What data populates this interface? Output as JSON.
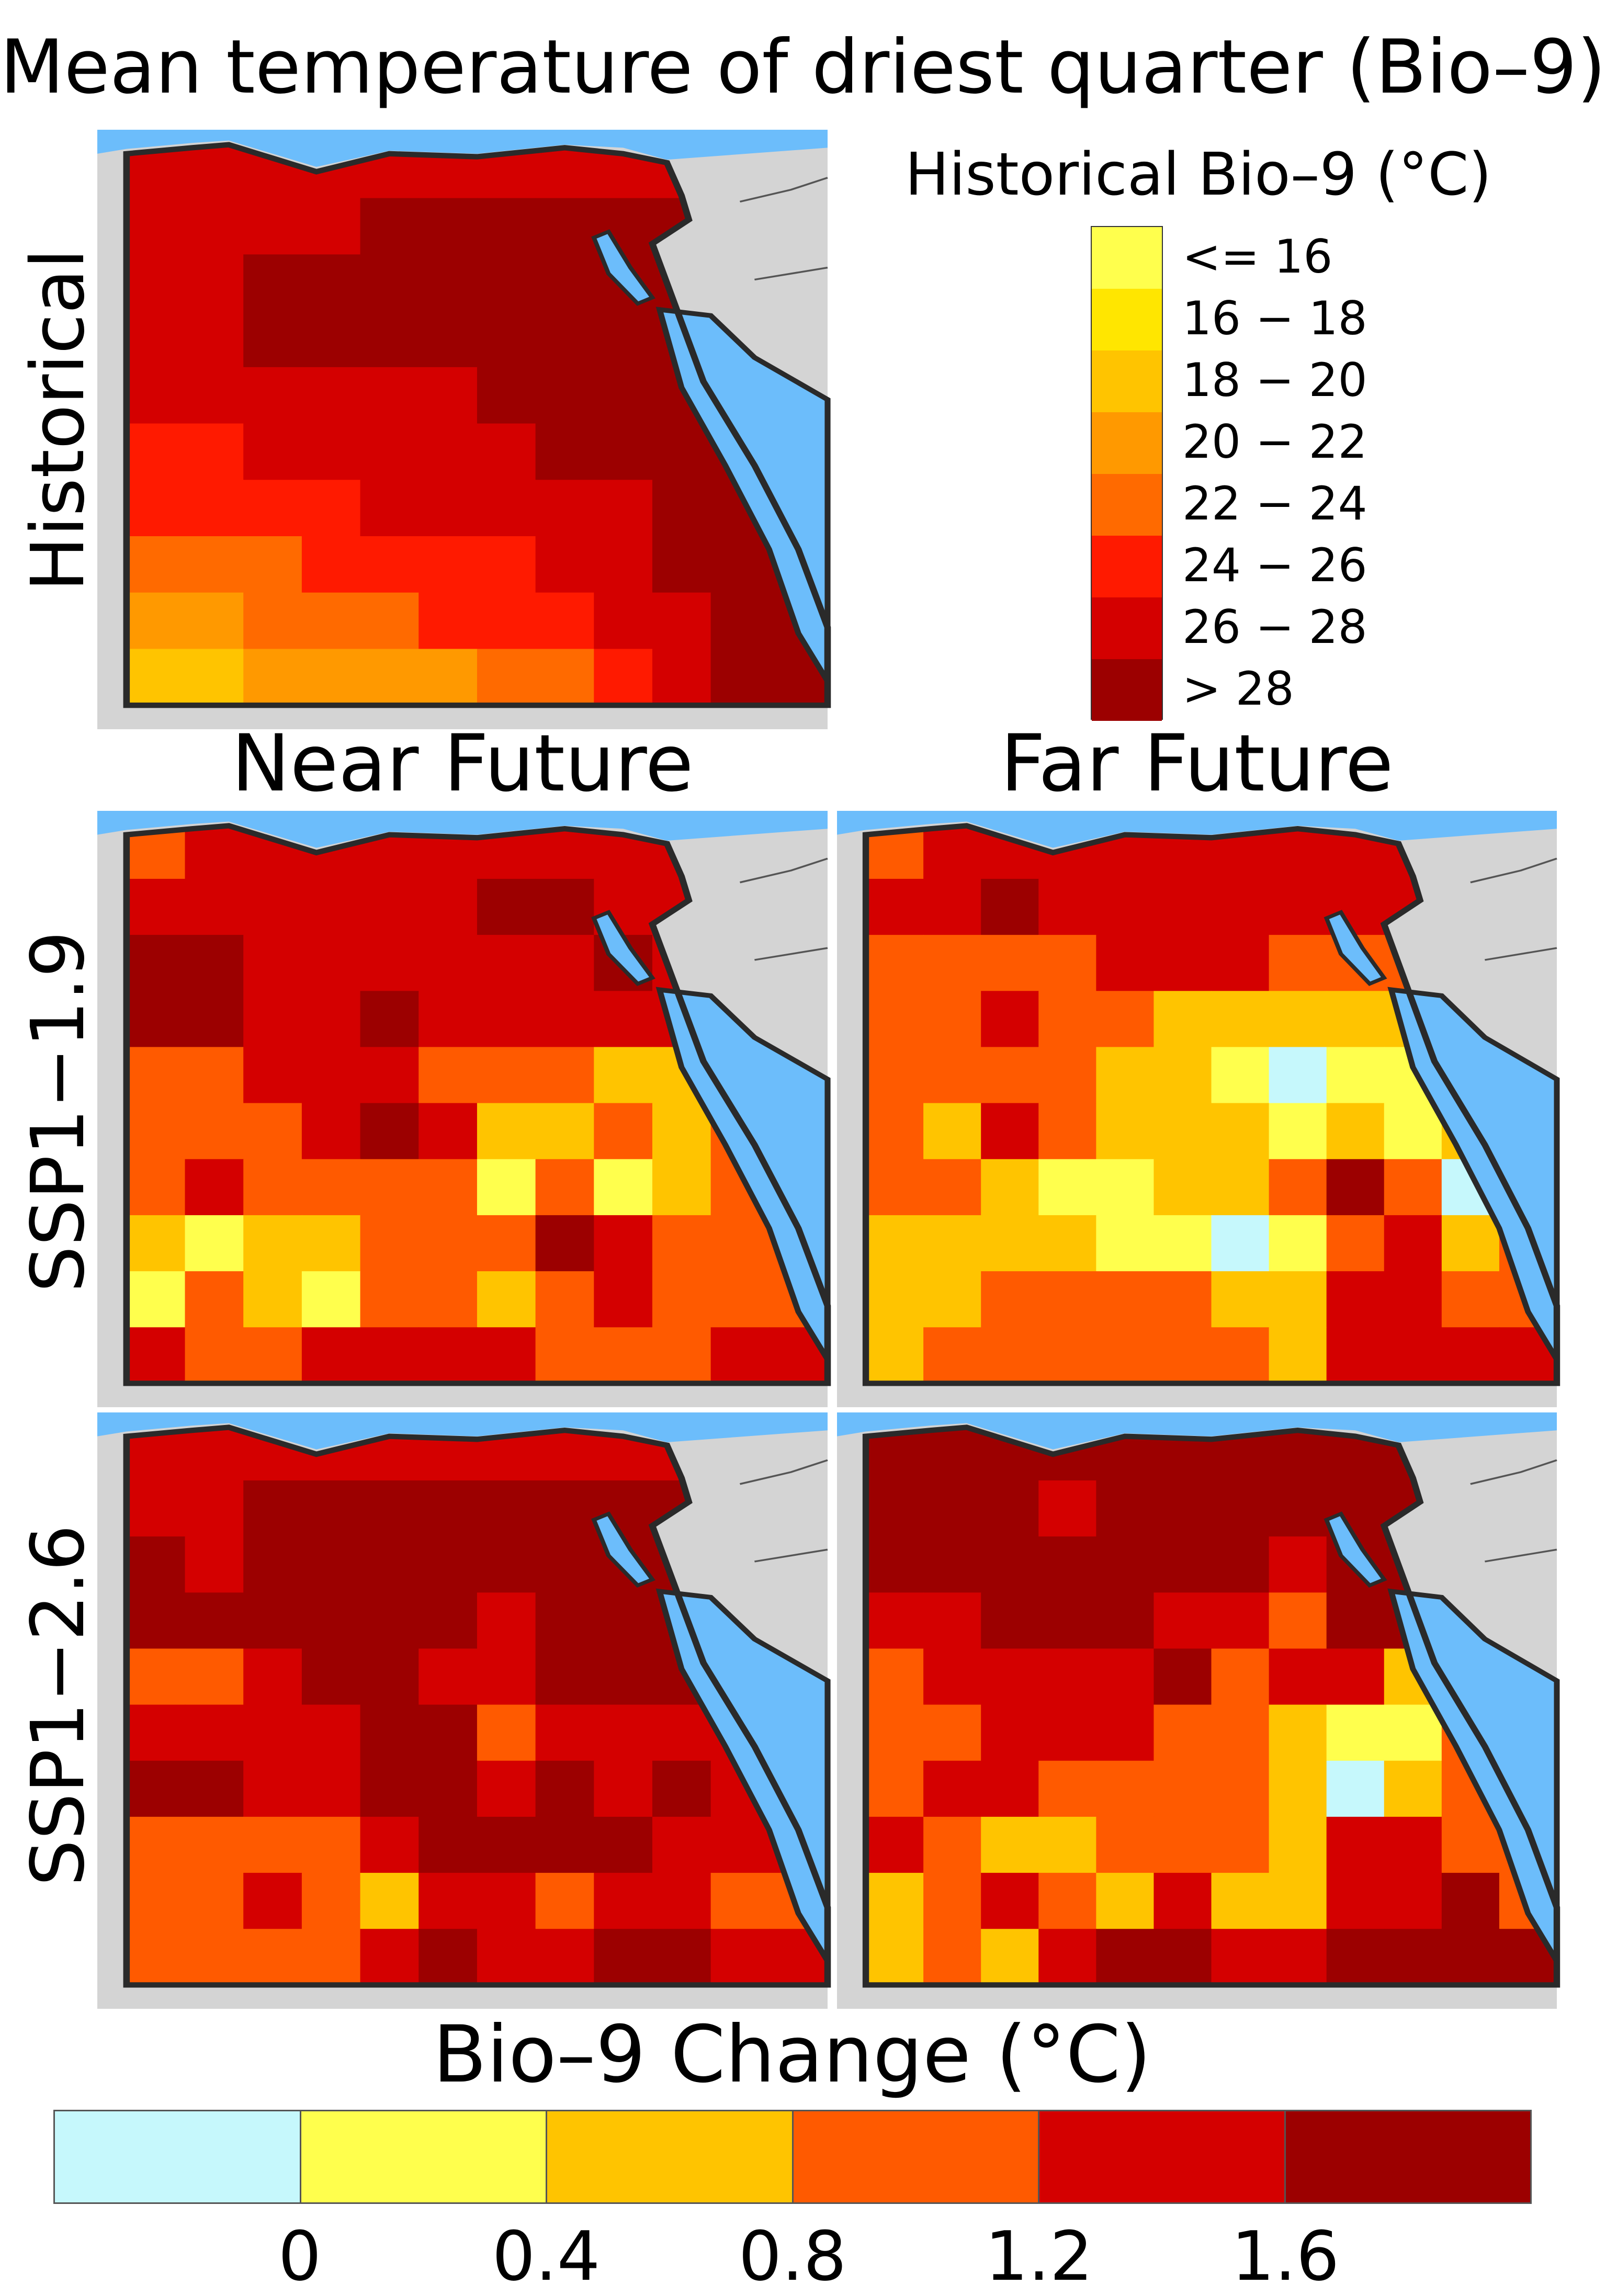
{
  "title": "Mean temperature of driest quarter (Bio–9)",
  "columns": [
    "Near Future",
    "Far Future"
  ],
  "rows": [
    "Historical",
    "SSP1−1.9",
    "SSP1−2.6"
  ],
  "historical_legend": {
    "title": "Historical Bio–9 (°C)",
    "classes": [
      {
        "label": "<= 16",
        "color": "#ffff4d"
      },
      {
        "label": "16 − 18",
        "color": "#ffe600"
      },
      {
        "label": "18 − 20",
        "color": "#ffc400"
      },
      {
        "label": "20 − 22",
        "color": "#ff9900"
      },
      {
        "label": "22 − 24",
        "color": "#ff6a00"
      },
      {
        "label": "24 − 26",
        "color": "#ff1a00"
      },
      {
        "label": "26 − 28",
        "color": "#d40000"
      },
      {
        "label": "> 28",
        "color": "#9c0000"
      }
    ]
  },
  "change_legend": {
    "title": "Bio–9 Change (°C)",
    "colors": [
      "#c6f8fc",
      "#ffff4d",
      "#ffc400",
      "#ff5a00",
      "#d40000",
      "#9c0000"
    ],
    "ticks": [
      "0",
      "0.4",
      "0.8",
      "1.2",
      "1.6"
    ]
  },
  "colors": {
    "sea": "#6cbdfb",
    "land_outside": "#d4d4d4",
    "border": "#2a2a2a"
  },
  "maps": {
    "historical": [
      [
        6,
        6,
        6,
        6,
        6,
        6,
        6,
        6,
        6,
        6,
        6,
        6
      ],
      [
        6,
        6,
        6,
        6,
        7,
        7,
        7,
        7,
        7,
        7,
        7,
        7
      ],
      [
        6,
        6,
        7,
        7,
        7,
        7,
        7,
        7,
        7,
        7,
        7,
        7
      ],
      [
        6,
        6,
        7,
        7,
        7,
        7,
        7,
        7,
        7,
        7,
        7,
        7
      ],
      [
        6,
        6,
        6,
        6,
        6,
        6,
        7,
        7,
        7,
        7,
        7,
        7
      ],
      [
        5,
        5,
        6,
        6,
        6,
        6,
        6,
        7,
        7,
        7,
        7,
        7
      ],
      [
        5,
        5,
        5,
        5,
        6,
        6,
        6,
        6,
        6,
        7,
        7,
        7
      ],
      [
        4,
        4,
        4,
        5,
        5,
        5,
        5,
        6,
        6,
        7,
        7,
        7
      ],
      [
        3,
        3,
        4,
        4,
        4,
        5,
        5,
        5,
        6,
        6,
        7,
        7
      ],
      [
        2,
        2,
        3,
        3,
        3,
        3,
        4,
        4,
        5,
        6,
        7,
        7
      ]
    ],
    "near_ssp119": [
      [
        3,
        4,
        4,
        4,
        4,
        4,
        4,
        4,
        4,
        4,
        4,
        4
      ],
      [
        4,
        4,
        4,
        4,
        4,
        4,
        5,
        5,
        4,
        4,
        4,
        4
      ],
      [
        5,
        5,
        4,
        4,
        4,
        4,
        4,
        4,
        5,
        4,
        4,
        4
      ],
      [
        5,
        5,
        4,
        4,
        5,
        4,
        4,
        4,
        4,
        4,
        4,
        4
      ],
      [
        3,
        3,
        4,
        4,
        4,
        3,
        3,
        3,
        2,
        2,
        3,
        4
      ],
      [
        3,
        3,
        3,
        4,
        5,
        4,
        2,
        2,
        3,
        2,
        3,
        3
      ],
      [
        3,
        4,
        3,
        3,
        3,
        3,
        1,
        3,
        1,
        2,
        3,
        3
      ],
      [
        2,
        1,
        2,
        2,
        3,
        3,
        3,
        5,
        4,
        3,
        3,
        3
      ],
      [
        1,
        3,
        2,
        1,
        3,
        3,
        2,
        3,
        4,
        3,
        3,
        3
      ],
      [
        4,
        3,
        3,
        4,
        4,
        4,
        4,
        3,
        3,
        3,
        4,
        4
      ]
    ],
    "far_ssp119": [
      [
        3,
        4,
        4,
        4,
        4,
        4,
        4,
        4,
        4,
        4,
        4,
        4
      ],
      [
        4,
        4,
        5,
        4,
        4,
        4,
        4,
        4,
        4,
        4,
        3,
        3
      ],
      [
        3,
        3,
        3,
        3,
        4,
        4,
        4,
        3,
        3,
        3,
        3,
        2
      ],
      [
        3,
        3,
        4,
        3,
        3,
        2,
        2,
        2,
        2,
        2,
        2,
        2
      ],
      [
        3,
        3,
        3,
        3,
        2,
        2,
        1,
        0,
        1,
        1,
        2,
        2
      ],
      [
        3,
        2,
        4,
        3,
        2,
        2,
        2,
        1,
        2,
        1,
        2,
        2
      ],
      [
        3,
        3,
        2,
        1,
        1,
        2,
        2,
        3,
        5,
        3,
        0,
        2
      ],
      [
        2,
        2,
        2,
        2,
        1,
        1,
        0,
        1,
        3,
        4,
        2,
        3
      ],
      [
        2,
        2,
        3,
        3,
        3,
        3,
        2,
        2,
        4,
        4,
        3,
        3
      ],
      [
        2,
        3,
        3,
        3,
        3,
        3,
        3,
        2,
        4,
        4,
        4,
        4
      ]
    ],
    "near_ssp126": [
      [
        4,
        4,
        4,
        4,
        4,
        4,
        4,
        4,
        4,
        4,
        4,
        4
      ],
      [
        4,
        4,
        5,
        5,
        5,
        5,
        5,
        5,
        5,
        5,
        4,
        4
      ],
      [
        5,
        4,
        5,
        5,
        5,
        5,
        5,
        5,
        5,
        5,
        4,
        4
      ],
      [
        5,
        5,
        5,
        5,
        5,
        5,
        4,
        5,
        5,
        5,
        4,
        4
      ],
      [
        3,
        3,
        4,
        5,
        5,
        4,
        4,
        5,
        5,
        5,
        4,
        4
      ],
      [
        4,
        4,
        4,
        4,
        5,
        5,
        3,
        4,
        4,
        4,
        4,
        4
      ],
      [
        5,
        5,
        4,
        4,
        5,
        5,
        4,
        5,
        4,
        5,
        4,
        4
      ],
      [
        3,
        3,
        3,
        3,
        4,
        5,
        5,
        5,
        5,
        4,
        4,
        4
      ],
      [
        3,
        3,
        4,
        3,
        2,
        4,
        4,
        3,
        4,
        4,
        3,
        3
      ],
      [
        3,
        3,
        3,
        3,
        4,
        5,
        4,
        4,
        5,
        5,
        4,
        4
      ]
    ],
    "far_ssp126": [
      [
        5,
        5,
        5,
        5,
        5,
        5,
        5,
        5,
        5,
        5,
        5,
        5
      ],
      [
        5,
        5,
        5,
        4,
        5,
        5,
        5,
        5,
        5,
        5,
        4,
        4
      ],
      [
        5,
        5,
        5,
        5,
        5,
        5,
        5,
        4,
        5,
        5,
        4,
        4
      ],
      [
        4,
        4,
        5,
        5,
        5,
        4,
        4,
        3,
        5,
        5,
        4,
        4
      ],
      [
        3,
        4,
        4,
        4,
        4,
        5,
        3,
        4,
        4,
        2,
        2,
        3
      ],
      [
        3,
        3,
        4,
        4,
        4,
        3,
        3,
        2,
        1,
        1,
        3,
        3
      ],
      [
        3,
        4,
        4,
        3,
        3,
        3,
        3,
        2,
        0,
        2,
        3,
        3
      ],
      [
        4,
        3,
        2,
        2,
        3,
        3,
        3,
        2,
        4,
        4,
        3,
        3
      ],
      [
        2,
        3,
        4,
        3,
        2,
        4,
        2,
        2,
        4,
        4,
        5,
        3
      ],
      [
        2,
        3,
        2,
        4,
        5,
        5,
        4,
        4,
        5,
        5,
        5,
        5
      ]
    ]
  }
}
